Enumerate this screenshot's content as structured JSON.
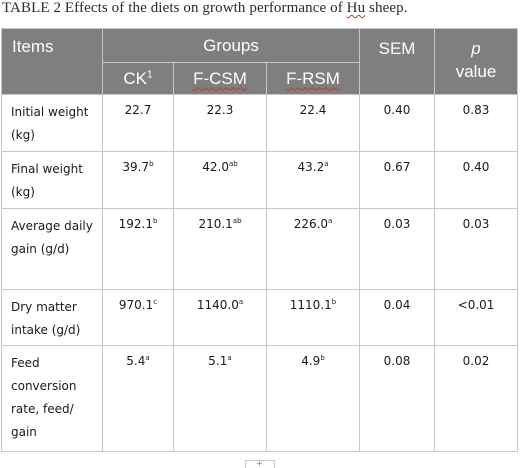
{
  "caption": {
    "prefix": "TABLE 2 Effects of the diets on growth performance of ",
    "species": "Hu",
    "suffix": " sheep."
  },
  "header": {
    "items": "Items",
    "groups": "Groups",
    "sem": "SEM",
    "p_italic": "p",
    "p_value": "value",
    "groups_list": [
      {
        "name": "CK",
        "sup": "1"
      },
      {
        "name": "F-CSM",
        "sup": ""
      },
      {
        "name": "F-RSM",
        "sup": ""
      }
    ]
  },
  "rows": [
    {
      "label": "Initial weight (kg)",
      "ck": "22.7",
      "ck_sup": "",
      "fcsm": "22.3",
      "fcsm_sup": "",
      "frsm": "22.4",
      "frsm_sup": "",
      "sem": "0.40",
      "p": "0.83"
    },
    {
      "label": "Final weight (kg)",
      "ck": "39.7",
      "ck_sup": "b",
      "fcsm": "42.0",
      "fcsm_sup": "ab",
      "frsm": "43.2",
      "frsm_sup": "a",
      "sem": "0.67",
      "p": "0.40"
    },
    {
      "label": "Average daily gain (g/d)",
      "ck": "192.1",
      "ck_sup": "b",
      "fcsm": "210.1",
      "fcsm_sup": "ab",
      "frsm": "226.0",
      "frsm_sup": "a",
      "sem": "0.03",
      "p": "0.03"
    },
    {
      "label": "Dry matter intake (g/d)",
      "ck": "970.1",
      "ck_sup": "c",
      "fcsm": "1140.0",
      "fcsm_sup": "a",
      "frsm": "1110.1",
      "frsm_sup": "b",
      "sem": "0.04",
      "p": "<0.01"
    },
    {
      "label": "Feed conversion rate, feed/ gain",
      "ck": "5.4",
      "ck_sup": "a",
      "fcsm": "5.1",
      "fcsm_sup": "a",
      "frsm": "4.9",
      "frsm_sup": "b",
      "sem": "0.08",
      "p": "0.02"
    }
  ]
}
